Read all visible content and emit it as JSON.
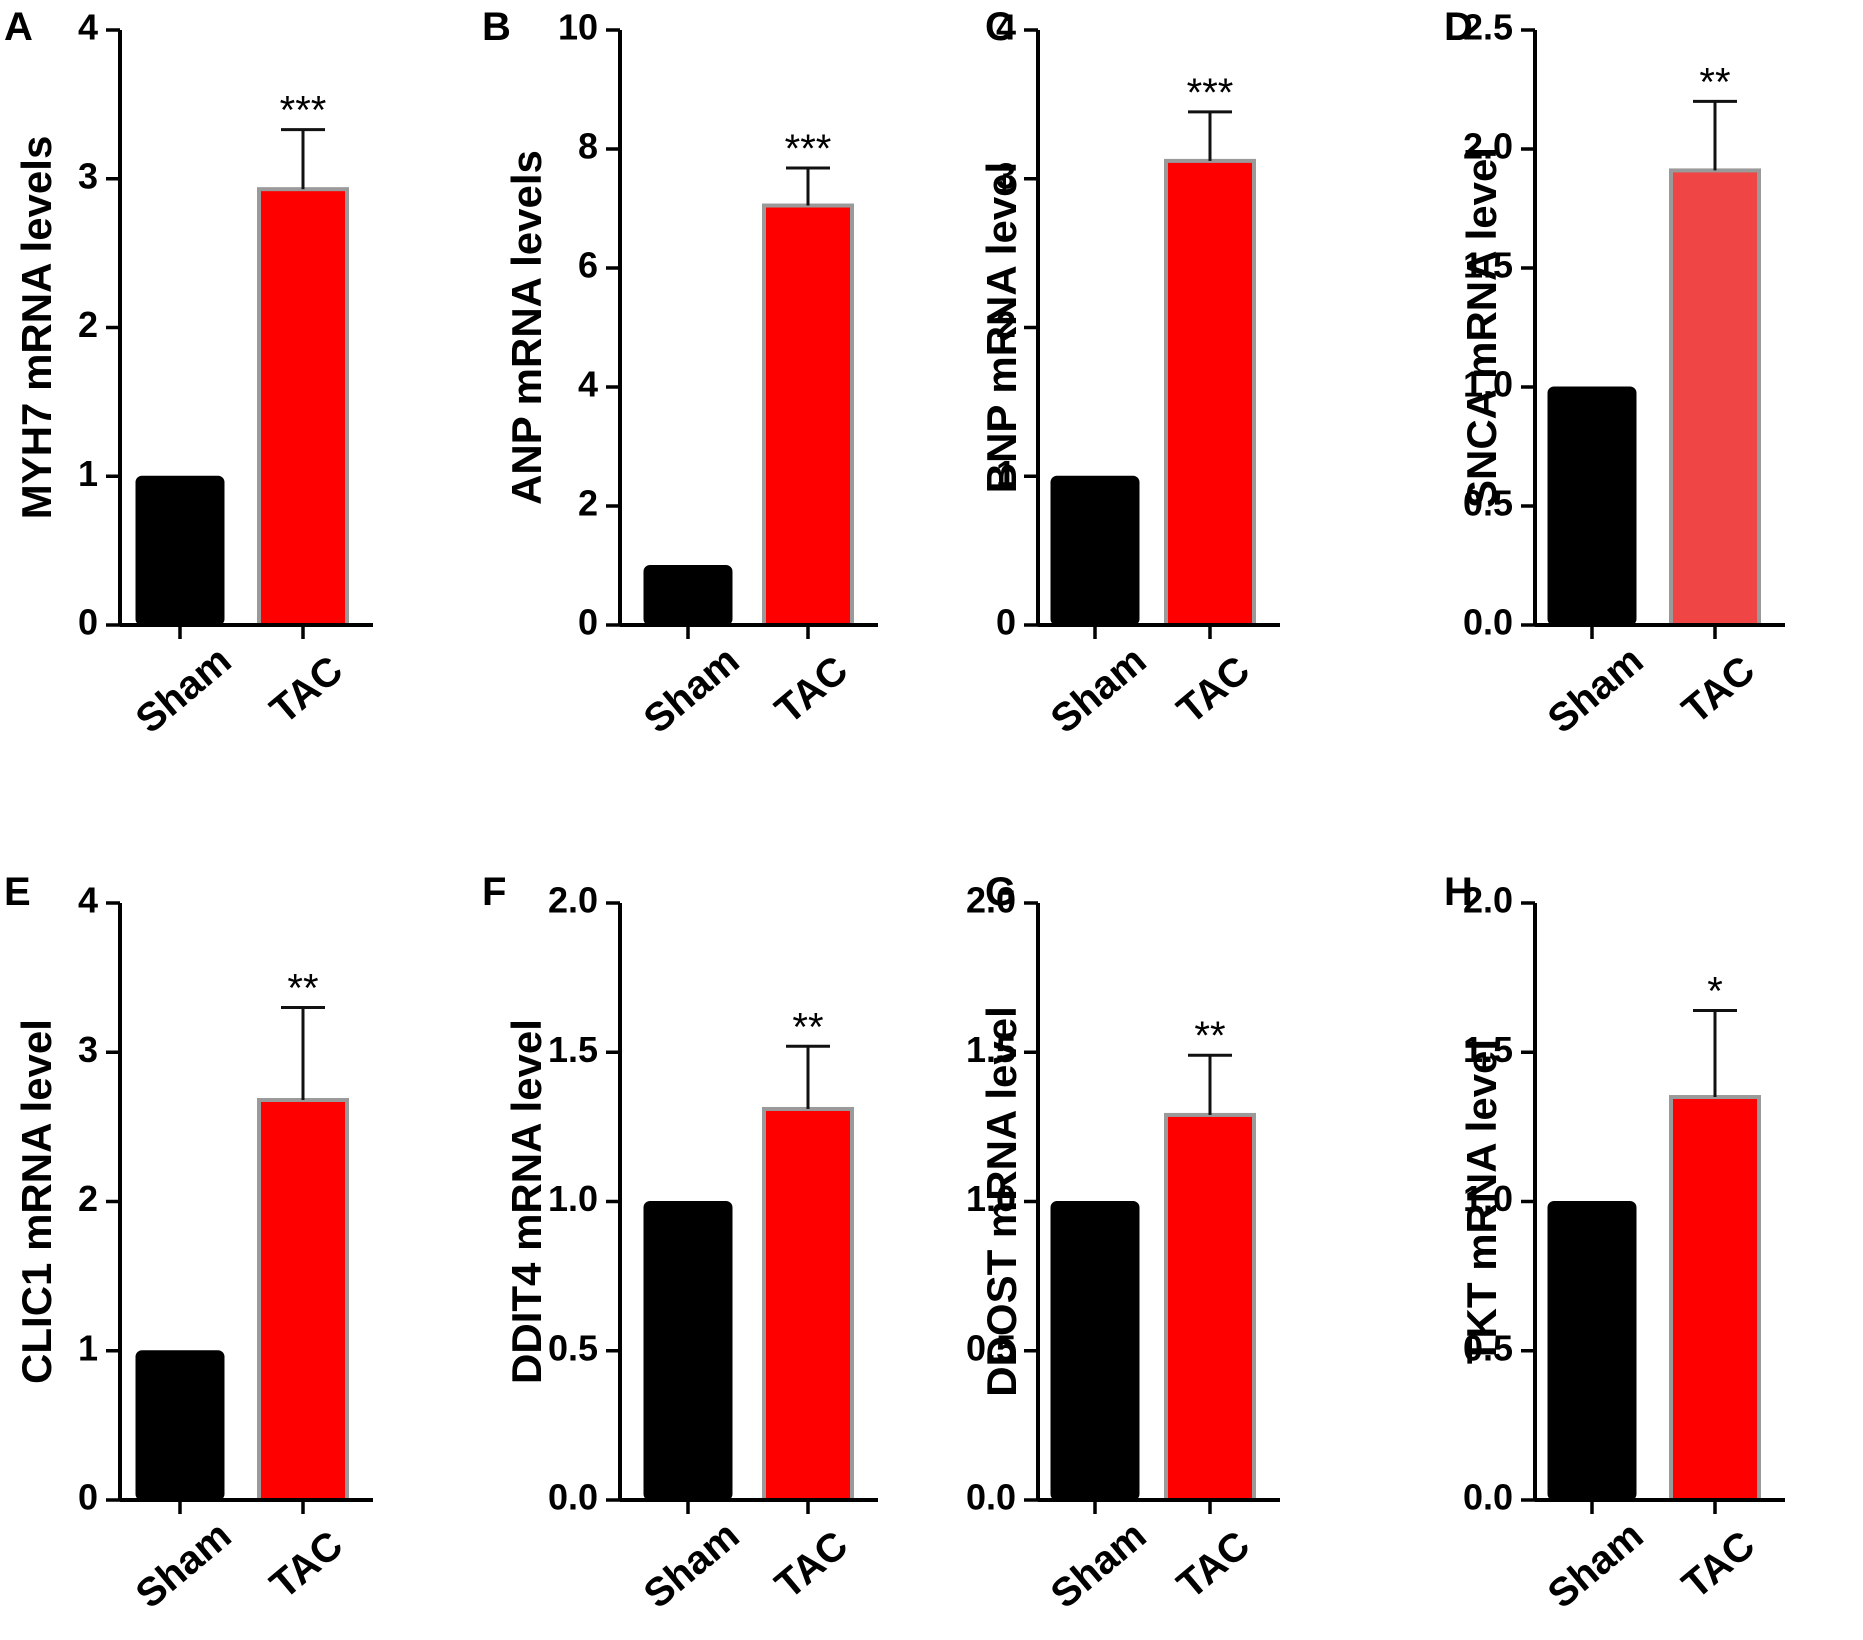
{
  "figure": {
    "background": "#ffffff",
    "colors": {
      "sham_bar": "#000000",
      "tac_bar": "#ff0000",
      "tac_bar_light": "#f04545",
      "tac_bar_edge": "#9a9a9a",
      "axis": "#000000"
    }
  },
  "chart_data": [
    {
      "panel": "A",
      "type": "bar",
      "categories": [
        "Sham",
        "TAC"
      ],
      "values": [
        1.0,
        2.93
      ],
      "errors": [
        0,
        0.4
      ],
      "significance": [
        "",
        "***"
      ],
      "ylabel": "MYH7 mRNA levels",
      "ylim": [
        0,
        4
      ],
      "yticks": [
        0,
        1,
        2,
        3,
        4
      ],
      "ytick_labels": [
        "0",
        "1",
        "2",
        "3",
        "4"
      ],
      "grid": false
    },
    {
      "panel": "B",
      "type": "bar",
      "categories": [
        "Sham",
        "TAC"
      ],
      "values": [
        1.0,
        7.05
      ],
      "errors": [
        0,
        0.63
      ],
      "significance": [
        "",
        "***"
      ],
      "ylabel": "ANP mRNA levels",
      "ylim": [
        0,
        10
      ],
      "yticks": [
        0,
        2,
        4,
        6,
        8,
        10
      ],
      "ytick_labels": [
        "0",
        "2",
        "4",
        "6",
        "8",
        "10"
      ],
      "grid": false
    },
    {
      "panel": "C",
      "type": "bar",
      "categories": [
        "Sham",
        "TAC"
      ],
      "values": [
        1.0,
        3.12
      ],
      "errors": [
        0,
        0.33
      ],
      "significance": [
        "",
        "***"
      ],
      "ylabel": "BNP mRNA level",
      "ylim": [
        0,
        4
      ],
      "yticks": [
        0,
        1,
        2,
        3,
        4
      ],
      "ytick_labels": [
        "0",
        "1",
        "2",
        "3",
        "4"
      ],
      "grid": false
    },
    {
      "panel": "D",
      "type": "bar",
      "categories": [
        "Sham",
        "TAC"
      ],
      "values": [
        1.0,
        1.91
      ],
      "errors": [
        0,
        0.29
      ],
      "significance": [
        "",
        "**"
      ],
      "ylabel": "SNCA mRNA level",
      "ylim": [
        0,
        2.5
      ],
      "yticks": [
        0,
        0.5,
        1.0,
        1.5,
        2.0,
        2.5
      ],
      "ytick_labels": [
        "0.0",
        "0.5",
        "1.0",
        "1.5",
        "2.0",
        "2.5"
      ],
      "grid": false
    },
    {
      "panel": "E",
      "type": "bar",
      "categories": [
        "Sham",
        "TAC"
      ],
      "values": [
        1.0,
        2.68
      ],
      "errors": [
        0,
        0.62
      ],
      "significance": [
        "",
        "**"
      ],
      "ylabel": "CLIC1 mRNA level",
      "ylim": [
        0,
        4
      ],
      "yticks": [
        0,
        1,
        2,
        3,
        4
      ],
      "ytick_labels": [
        "0",
        "1",
        "2",
        "3",
        "4"
      ],
      "grid": false
    },
    {
      "panel": "F",
      "type": "bar",
      "categories": [
        "Sham",
        "TAC"
      ],
      "values": [
        1.0,
        1.31
      ],
      "errors": [
        0,
        0.21
      ],
      "significance": [
        "",
        "**"
      ],
      "ylabel": "DDIT4 mRNA level",
      "ylim": [
        0,
        2.0
      ],
      "yticks": [
        0,
        0.5,
        1.0,
        1.5,
        2.0
      ],
      "ytick_labels": [
        "0.0",
        "0.5",
        "1.0",
        "1.5",
        "2.0"
      ],
      "grid": false
    },
    {
      "panel": "G",
      "type": "bar",
      "categories": [
        "Sham",
        "TAC"
      ],
      "values": [
        1.0,
        1.29
      ],
      "errors": [
        0,
        0.2
      ],
      "significance": [
        "",
        "**"
      ],
      "ylabel": "DDOST mRNA level",
      "ylim": [
        0,
        2.0
      ],
      "yticks": [
        0,
        0.5,
        1.0,
        1.5,
        2.0
      ],
      "ytick_labels": [
        "0.0",
        "0.5",
        "1.0",
        "1.5",
        "2.0"
      ],
      "grid": false
    },
    {
      "panel": "H",
      "type": "bar",
      "categories": [
        "Sham",
        "TAC"
      ],
      "values": [
        1.0,
        1.35
      ],
      "errors": [
        0,
        0.29
      ],
      "significance": [
        "",
        "*"
      ],
      "ylabel": "TKT mRNA level",
      "ylim": [
        0,
        2.0
      ],
      "yticks": [
        0,
        0.5,
        1.0,
        1.5,
        2.0
      ],
      "ytick_labels": [
        "0.0",
        "0.5",
        "1.0",
        "1.5",
        "2.0"
      ],
      "grid": false
    }
  ]
}
